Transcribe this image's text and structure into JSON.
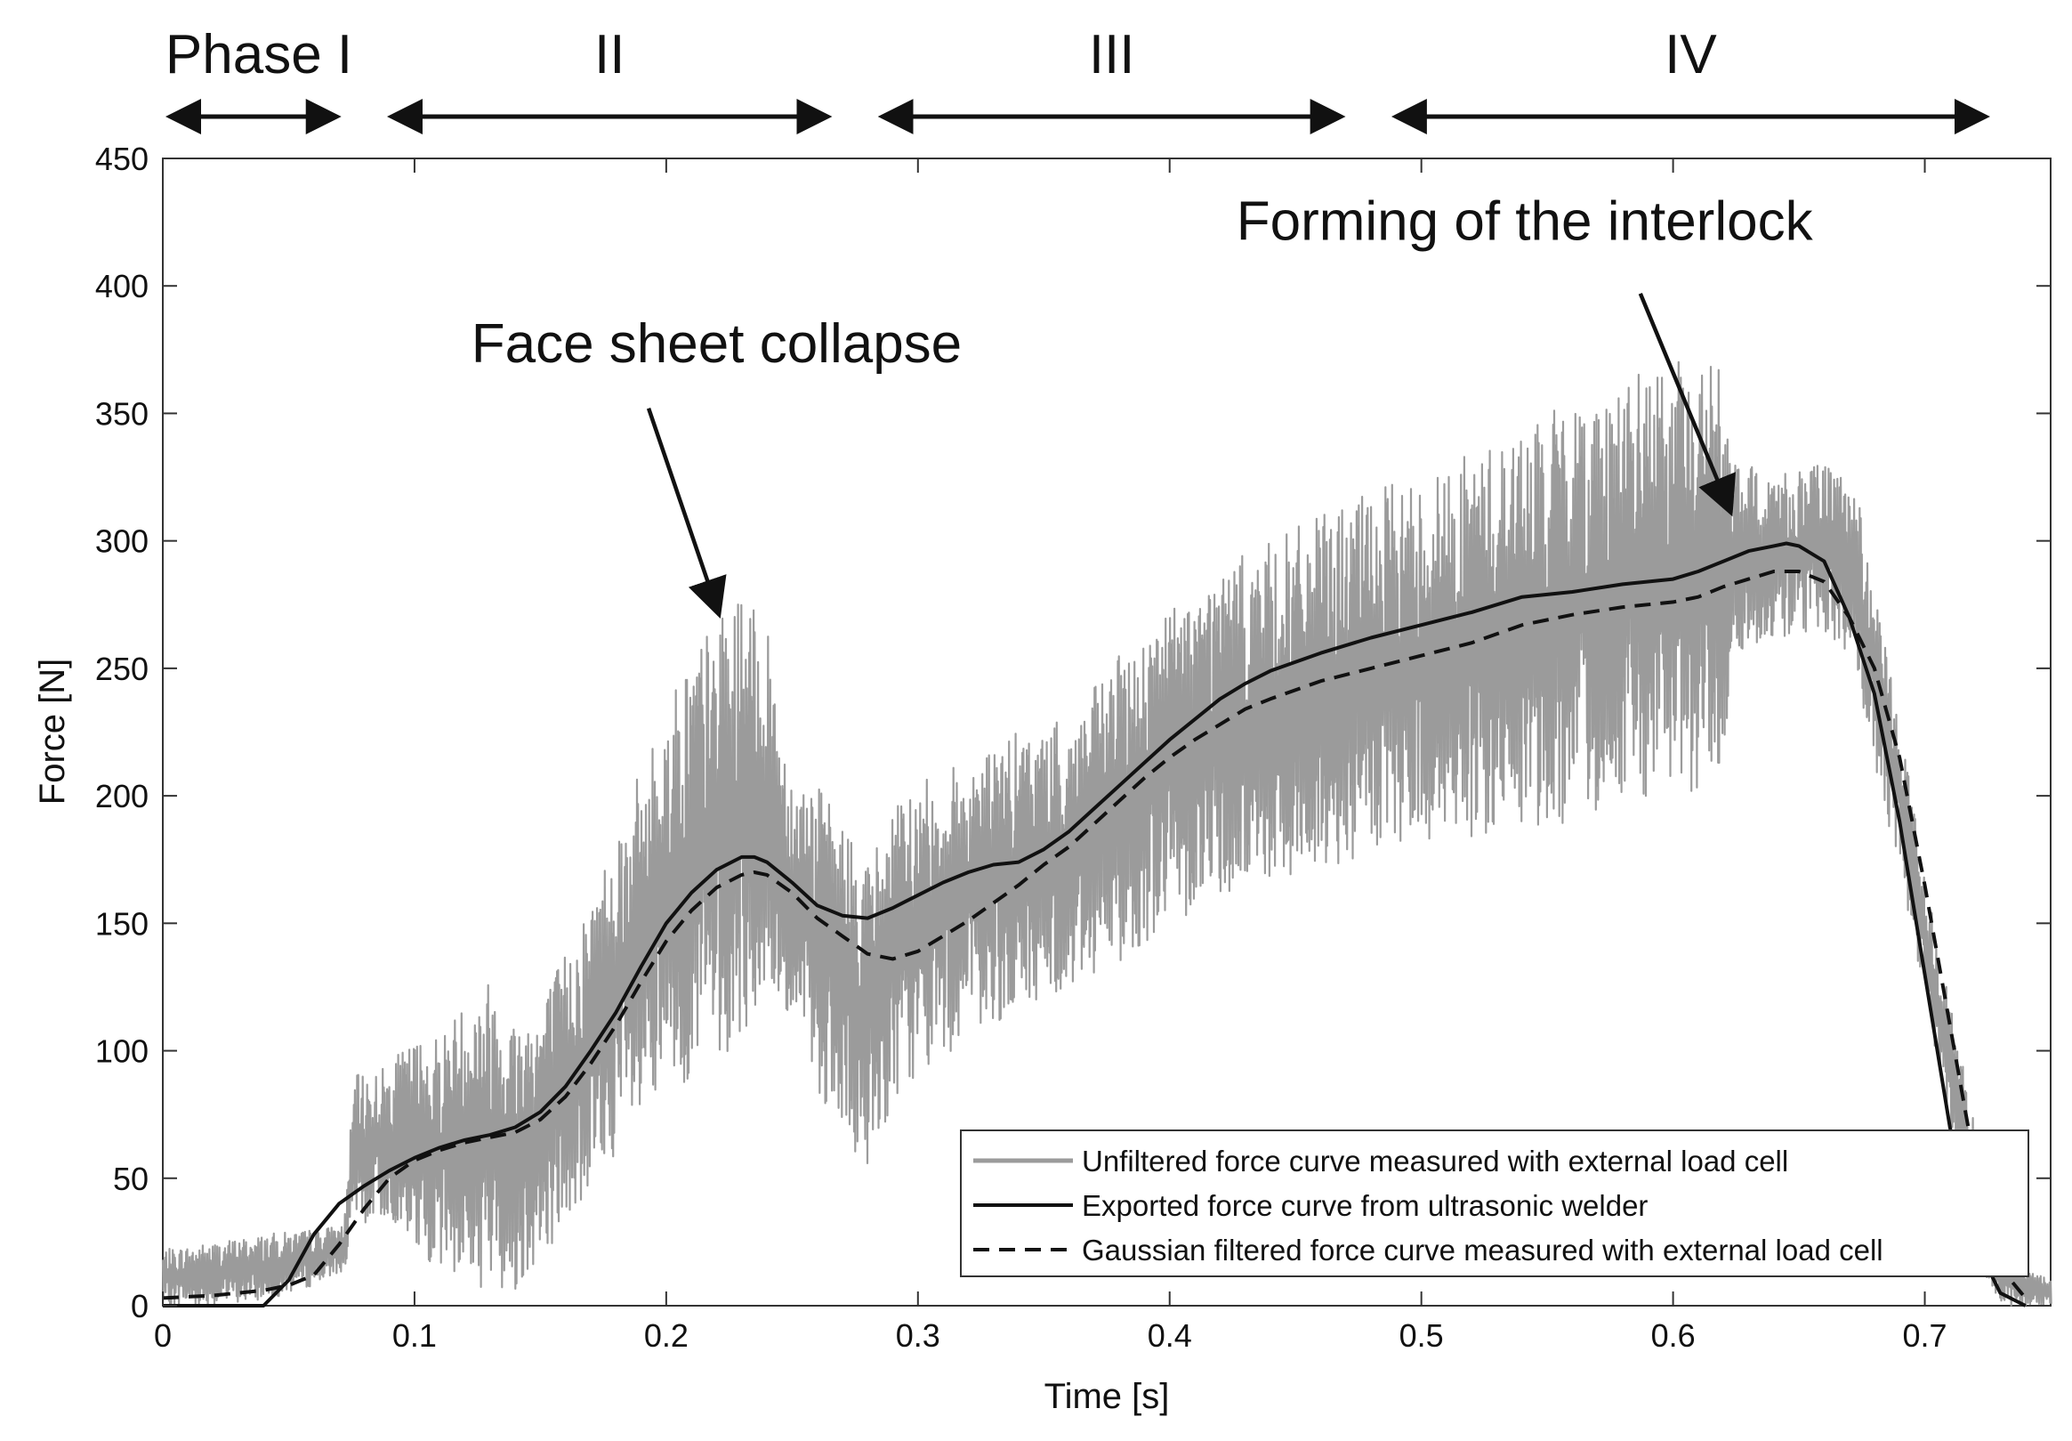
{
  "chart_data": {
    "type": "line",
    "xlabel": "Time [s]",
    "ylabel": "Force [N]",
    "xlim": [
      0,
      0.75
    ],
    "ylim": [
      0,
      450
    ],
    "xticks": [
      0,
      0.1,
      0.2,
      0.3,
      0.4,
      0.5,
      0.6,
      0.7
    ],
    "xtick_labels": [
      "0",
      "0.1",
      "0.2",
      "0.3",
      "0.4",
      "0.5",
      "0.6",
      "0.7"
    ],
    "yticks": [
      0,
      50,
      100,
      150,
      200,
      250,
      300,
      350,
      400,
      450
    ],
    "ytick_labels": [
      "0",
      "50",
      "100",
      "150",
      "200",
      "250",
      "300",
      "350",
      "400",
      "450"
    ],
    "grid": false,
    "legend_position": "bottom-right",
    "phases": [
      {
        "label": "Phase I",
        "start": 0.0,
        "end": 0.072
      },
      {
        "label": "II",
        "start": 0.088,
        "end": 0.267
      },
      {
        "label": "III",
        "start": 0.283,
        "end": 0.471
      },
      {
        "label": "IV",
        "start": 0.487,
        "end": 0.727
      }
    ],
    "annotations": [
      {
        "text": "Face sheet collapse",
        "text_x": 0.22,
        "text_y": 370,
        "arrow_from": [
          0.193,
          352
        ],
        "arrow_to": [
          0.221,
          271
        ]
      },
      {
        "text": "Forming of the interlock",
        "text_x": 0.541,
        "text_y": 418,
        "arrow_from": [
          0.587,
          397
        ],
        "arrow_to": [
          0.623,
          311
        ]
      }
    ],
    "series": [
      {
        "name": "Unfiltered force curve measured with external load cell",
        "style": "gray-band",
        "color": "#9b9b9b",
        "x": [
          0,
          0.02,
          0.04,
          0.06,
          0.072,
          0.076,
          0.09,
          0.1,
          0.11,
          0.12,
          0.13,
          0.14,
          0.15,
          0.16,
          0.17,
          0.18,
          0.19,
          0.2,
          0.21,
          0.22,
          0.23,
          0.24,
          0.25,
          0.26,
          0.27,
          0.275,
          0.28,
          0.29,
          0.3,
          0.32,
          0.34,
          0.36,
          0.38,
          0.4,
          0.42,
          0.44,
          0.46,
          0.48,
          0.5,
          0.52,
          0.54,
          0.56,
          0.58,
          0.6,
          0.62,
          0.623,
          0.64,
          0.66,
          0.672,
          0.68,
          0.69,
          0.7,
          0.71,
          0.72,
          0.73,
          0.74,
          0.75
        ],
        "upper": [
          22,
          25,
          28,
          30,
          32,
          90,
          95,
          105,
          108,
          120,
          130,
          115,
          120,
          140,
          160,
          190,
          210,
          235,
          260,
          268,
          280,
          265,
          210,
          205,
          190,
          185,
          175,
          195,
          205,
          215,
          225,
          230,
          255,
          275,
          290,
          300,
          310,
          320,
          325,
          335,
          345,
          355,
          365,
          370,
          372,
          330,
          328,
          330,
          325,
          280,
          230,
          170,
          120,
          70,
          20,
          15,
          10
        ],
        "lower": [
          0,
          0,
          2,
          8,
          14,
          30,
          35,
          20,
          15,
          10,
          5,
          5,
          20,
          30,
          45,
          60,
          65,
          80,
          90,
          95,
          105,
          115,
          110,
          85,
          60,
          50,
          55,
          80,
          90,
          105,
          115,
          125,
          135,
          150,
          160,
          165,
          170,
          175,
          180,
          182,
          185,
          190,
          195,
          200,
          205,
          255,
          262,
          265,
          250,
          210,
          170,
          120,
          70,
          20,
          0,
          0,
          0
        ]
      },
      {
        "name": "Exported force curve from ultrasonic welder",
        "style": "solid",
        "color": "#111111",
        "x": [
          0,
          0.02,
          0.04,
          0.05,
          0.06,
          0.07,
          0.08,
          0.09,
          0.1,
          0.11,
          0.12,
          0.13,
          0.14,
          0.15,
          0.16,
          0.17,
          0.18,
          0.19,
          0.2,
          0.21,
          0.22,
          0.23,
          0.235,
          0.24,
          0.25,
          0.26,
          0.27,
          0.28,
          0.29,
          0.3,
          0.31,
          0.32,
          0.33,
          0.34,
          0.35,
          0.36,
          0.37,
          0.38,
          0.39,
          0.4,
          0.41,
          0.42,
          0.43,
          0.44,
          0.46,
          0.48,
          0.5,
          0.52,
          0.54,
          0.56,
          0.58,
          0.6,
          0.61,
          0.62,
          0.63,
          0.64,
          0.645,
          0.65,
          0.66,
          0.67,
          0.68,
          0.69,
          0.7,
          0.71,
          0.72,
          0.73,
          0.74
        ],
        "y": [
          0,
          0,
          0,
          10,
          28,
          40,
          47,
          53,
          58,
          62,
          65,
          67,
          70,
          76,
          86,
          100,
          115,
          133,
          150,
          162,
          171,
          176,
          176,
          174,
          166,
          157,
          153,
          152,
          156,
          161,
          166,
          170,
          173,
          174,
          179,
          186,
          195,
          204,
          213,
          222,
          230,
          238,
          244,
          249,
          256,
          262,
          267,
          272,
          278,
          280,
          283,
          285,
          288,
          292,
          296,
          298,
          299,
          298,
          292,
          270,
          240,
          190,
          130,
          70,
          25,
          5,
          0
        ]
      },
      {
        "name": "Gaussian filtered force curve measured with external load cell",
        "style": "dashed",
        "color": "#111111",
        "x": [
          0,
          0.02,
          0.04,
          0.05,
          0.06,
          0.07,
          0.08,
          0.09,
          0.1,
          0.11,
          0.12,
          0.13,
          0.14,
          0.15,
          0.16,
          0.17,
          0.18,
          0.19,
          0.2,
          0.21,
          0.22,
          0.23,
          0.235,
          0.24,
          0.25,
          0.26,
          0.27,
          0.28,
          0.29,
          0.3,
          0.31,
          0.32,
          0.33,
          0.34,
          0.35,
          0.36,
          0.37,
          0.38,
          0.39,
          0.4,
          0.41,
          0.42,
          0.43,
          0.44,
          0.46,
          0.48,
          0.5,
          0.52,
          0.54,
          0.56,
          0.58,
          0.6,
          0.61,
          0.62,
          0.63,
          0.64,
          0.65,
          0.66,
          0.67,
          0.68,
          0.69,
          0.7,
          0.71,
          0.72,
          0.73,
          0.74
        ],
        "y": [
          3,
          4,
          6,
          8,
          12,
          24,
          38,
          50,
          57,
          61,
          64,
          66,
          68,
          73,
          82,
          95,
          110,
          127,
          143,
          155,
          164,
          169,
          170,
          169,
          162,
          152,
          145,
          138,
          136,
          139,
          145,
          151,
          158,
          165,
          173,
          180,
          189,
          198,
          207,
          215,
          222,
          228,
          234,
          238,
          245,
          250,
          255,
          260,
          267,
          271,
          274,
          276,
          278,
          282,
          285,
          288,
          288,
          284,
          270,
          250,
          215,
          165,
          110,
          55,
          15,
          3
        ]
      }
    ]
  }
}
